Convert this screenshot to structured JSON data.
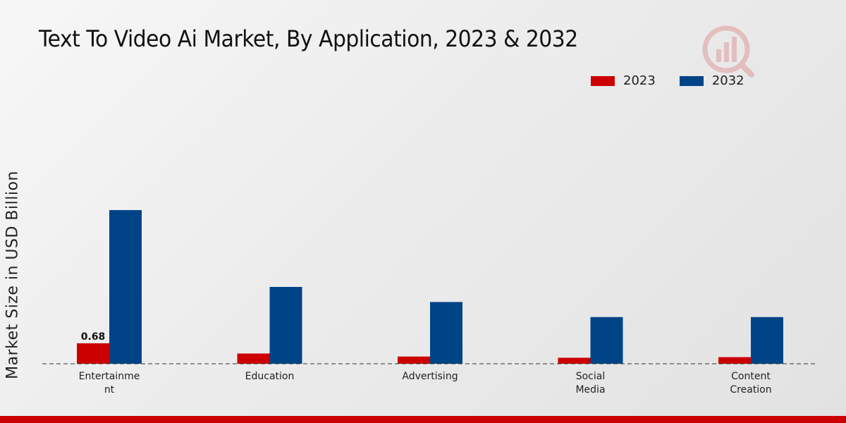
{
  "title": "Text To Video Ai Market, By Application, 2023 & 2032",
  "colors": {
    "2023": "#cc0000",
    "2032": "#004488",
    "accent": "#cc0000"
  },
  "logo": {
    "icon": "research-logo-icon"
  },
  "chart_data": {
    "type": "bar",
    "title": "Text To Video Ai Market, By Application, 2023 & 2032",
    "xlabel": "",
    "ylabel": "Market Size in USD Billion",
    "categories": [
      [
        "Entertainme",
        "nt"
      ],
      [
        "Education"
      ],
      [
        "Advertising"
      ],
      [
        "Social",
        "Media"
      ],
      [
        "Content",
        "Creation"
      ]
    ],
    "series": [
      {
        "name": "2023",
        "values": [
          0.68,
          0.34,
          0.24,
          0.2,
          0.22
        ]
      },
      {
        "name": "2032",
        "values": [
          5.1,
          2.55,
          2.05,
          1.55,
          1.55
        ]
      }
    ],
    "data_labels": [
      {
        "series": 0,
        "index": 0,
        "text": "0.68"
      }
    ],
    "ylim": [
      0,
      8.0
    ],
    "grid": false,
    "legend_position": "top-right"
  }
}
